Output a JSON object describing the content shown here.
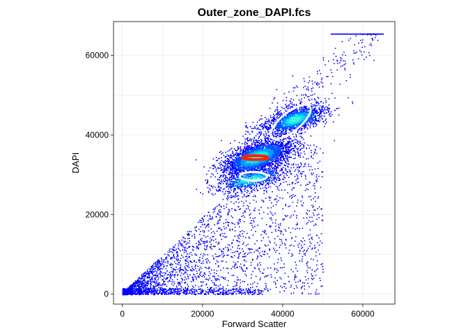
{
  "chart_data": {
    "type": "scatter",
    "title": "Outer_zone_DAPI.fcs",
    "xlabel": "Forward Scatter",
    "ylabel": "DAPI",
    "xlim": [
      -2200,
      68000
    ],
    "ylim": [
      -2500,
      68500
    ],
    "x_ticks": [
      0,
      20000,
      40000,
      60000
    ],
    "y_ticks": [
      0,
      20000,
      40000,
      60000
    ],
    "x_tick_labels": [
      "0",
      "20000",
      "40000",
      "60000"
    ],
    "y_tick_labels": [
      "0",
      "20000",
      "40000",
      "60000"
    ],
    "grid": true,
    "point_color": "#0000ff",
    "density_colors": [
      "#0000ff",
      "#0050ff",
      "#00a0ff",
      "#00e5ff",
      "#40ffc0"
    ],
    "gates": [
      {
        "shape": "ellipse",
        "color": "#ffffff",
        "center": [
          42000,
          43300
        ],
        "semi_axes": [
          6100,
          2400
        ],
        "angle_deg": 39
      },
      {
        "shape": "ellipse",
        "color": "#ff2000",
        "center": [
          33200,
          34300
        ],
        "semi_axes": [
          3200,
          500
        ],
        "angle_deg": 0
      },
      {
        "shape": "ellipse",
        "color": "#ffffff",
        "center": [
          32700,
          29600
        ],
        "semi_axes": [
          3400,
          1100
        ],
        "angle_deg": 0
      }
    ],
    "clusters": [
      {
        "center": [
          33500,
          34500
        ],
        "spread": [
          4500,
          2800
        ],
        "count": 2600
      },
      {
        "center": [
          43000,
          44000
        ],
        "spread": [
          4000,
          2200
        ],
        "count": 1400
      },
      {
        "center": [
          32000,
          29000
        ],
        "spread": [
          4500,
          2000
        ],
        "count": 700
      }
    ],
    "upper_trend": {
      "x_range": [
        30000,
        64000
      ],
      "y_start": 38000,
      "y_end": 65500,
      "count": 260
    },
    "bottom_band": {
      "x_range": [
        0,
        35000
      ],
      "y_range": [
        0,
        1500
      ],
      "count": 500
    },
    "diffuse_region": {
      "x_range": [
        0,
        50000
      ],
      "y_range": [
        0,
        38000
      ],
      "count": 2400
    },
    "cap_line": {
      "x_range": [
        52000,
        65000
      ],
      "y": 65500
    }
  }
}
